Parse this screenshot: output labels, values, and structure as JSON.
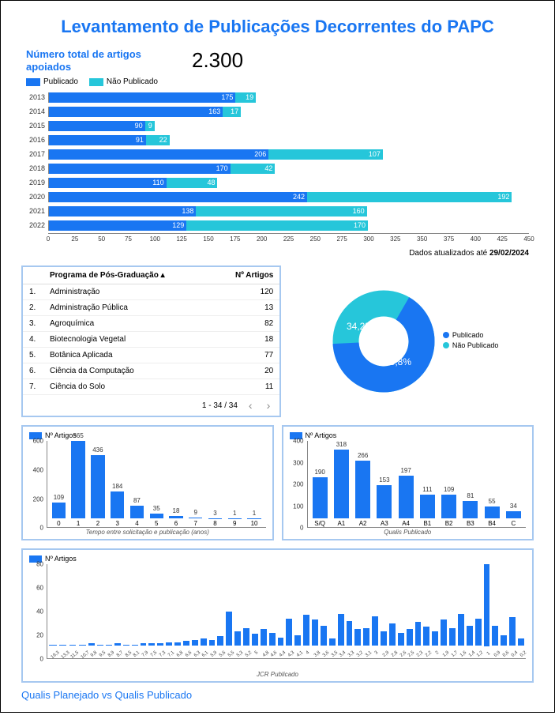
{
  "colors": {
    "primary": "#1976f2",
    "secondary": "#26c6da",
    "border": "#a6c8f0",
    "axis": "#888888",
    "text": "#333333",
    "white": "#ffffff"
  },
  "title": "Levantamento de Publicações Decorrentes do PAPC",
  "kpi": {
    "label": "Número total de artigos apoiados",
    "value": "2.300"
  },
  "stacked_legend": [
    {
      "label": "Publicado",
      "color": "#1976f2"
    },
    {
      "label": "Não Publicado",
      "color": "#26c6da"
    }
  ],
  "stacked_chart": {
    "xmax": 450,
    "xtick_step": 25,
    "rows": [
      {
        "year": "2013",
        "pub": 175,
        "npub": 19
      },
      {
        "year": "2014",
        "pub": 163,
        "npub": 17
      },
      {
        "year": "2015",
        "pub": 90,
        "npub": 9
      },
      {
        "year": "2016",
        "pub": 91,
        "npub": 22
      },
      {
        "year": "2017",
        "pub": 206,
        "npub": 107
      },
      {
        "year": "2018",
        "pub": 170,
        "npub": 42
      },
      {
        "year": "2019",
        "pub": 110,
        "npub": 48
      },
      {
        "year": "2020",
        "pub": 242,
        "npub": 192
      },
      {
        "year": "2021",
        "pub": 138,
        "npub": 160
      },
      {
        "year": "2022",
        "pub": 129,
        "npub": 170
      }
    ]
  },
  "updated": {
    "prefix": "Dados atualizados até ",
    "date": "29/02/2024"
  },
  "table": {
    "col_program": "Programa de Pós-Graduação",
    "sort_indicator": "▴",
    "col_count": "Nº Artigos",
    "rows": [
      {
        "n": "1.",
        "name": "Administração",
        "val": "120"
      },
      {
        "n": "2.",
        "name": "Administração Pública",
        "val": "13"
      },
      {
        "n": "3.",
        "name": "Agroquímica",
        "val": "82"
      },
      {
        "n": "4.",
        "name": "Biotecnologia Vegetal",
        "val": "18"
      },
      {
        "n": "5.",
        "name": "Botânica Aplicada",
        "val": "77"
      },
      {
        "n": "6.",
        "name": "Ciência da Computação",
        "val": "20"
      },
      {
        "n": "7.",
        "name": "Ciência do Solo",
        "val": "11"
      }
    ],
    "pager": "1 - 34 / 34"
  },
  "donut": {
    "pub_pct": 65.8,
    "pub_label": "65,8%",
    "npub_pct": 34.2,
    "npub_label": "34,2%",
    "legend": [
      {
        "label": "Publicado",
        "color": "#1976f2"
      },
      {
        "label": "Não Publicado",
        "color": "#26c6da"
      }
    ]
  },
  "tempo_chart": {
    "legend": "Nº Artigos",
    "ymax": 600,
    "ytick_step": 200,
    "axis_title": "Tempo entre solicitação e publicação (anos)",
    "bars": [
      {
        "x": "0",
        "v": 109
      },
      {
        "x": "1",
        "v": 565
      },
      {
        "x": "2",
        "v": 436
      },
      {
        "x": "3",
        "v": 184
      },
      {
        "x": "4",
        "v": 87
      },
      {
        "x": "5",
        "v": 35
      },
      {
        "x": "6",
        "v": 18
      },
      {
        "x": "7",
        "v": 9
      },
      {
        "x": "8",
        "v": 3
      },
      {
        "x": "9",
        "v": 1
      },
      {
        "x": "10",
        "v": 1
      }
    ]
  },
  "qualis_chart": {
    "legend": "Nº Artigos",
    "ymax": 400,
    "ytick_step": 100,
    "axis_title": "Qualis Publicado",
    "bars": [
      {
        "x": "S/Q",
        "v": 190
      },
      {
        "x": "A1",
        "v": 318
      },
      {
        "x": "A2",
        "v": 266
      },
      {
        "x": "A3",
        "v": 153
      },
      {
        "x": "A4",
        "v": 197
      },
      {
        "x": "B1",
        "v": 111
      },
      {
        "x": "B2",
        "v": 109
      },
      {
        "x": "B3",
        "v": 81
      },
      {
        "x": "B4",
        "v": 55
      },
      {
        "x": "C",
        "v": 34
      }
    ]
  },
  "jcr_chart": {
    "legend": "Nº Artigos",
    "ymax": 80,
    "ytick_step": 20,
    "axis_title": "JCR Publicado",
    "bars": [
      {
        "x": "19,3",
        "v": 1
      },
      {
        "x": "13,3",
        "v": 1
      },
      {
        "x": "11,5",
        "v": 1
      },
      {
        "x": "10,7",
        "v": 1
      },
      {
        "x": "9,8",
        "v": 2
      },
      {
        "x": "9,5",
        "v": 1
      },
      {
        "x": "8,9",
        "v": 1
      },
      {
        "x": "8,7",
        "v": 2
      },
      {
        "x": "8,5",
        "v": 1
      },
      {
        "x": "8,1",
        "v": 1
      },
      {
        "x": "7,9",
        "v": 2
      },
      {
        "x": "7,5",
        "v": 2
      },
      {
        "x": "7,3",
        "v": 2
      },
      {
        "x": "7,1",
        "v": 3
      },
      {
        "x": "6,8",
        "v": 3
      },
      {
        "x": "6,6",
        "v": 4
      },
      {
        "x": "6,3",
        "v": 5
      },
      {
        "x": "6,1",
        "v": 6
      },
      {
        "x": "5,9",
        "v": 5
      },
      {
        "x": "5,6",
        "v": 8
      },
      {
        "x": "5,5",
        "v": 29
      },
      {
        "x": "5,3",
        "v": 12
      },
      {
        "x": "5,2",
        "v": 15
      },
      {
        "x": "5",
        "v": 10
      },
      {
        "x": "4,8",
        "v": 14
      },
      {
        "x": "4,6",
        "v": 11
      },
      {
        "x": "4,4",
        "v": 7
      },
      {
        "x": "4,3",
        "v": 23
      },
      {
        "x": "4,1",
        "v": 9
      },
      {
        "x": "4",
        "v": 26
      },
      {
        "x": "3,8",
        "v": 22
      },
      {
        "x": "3,6",
        "v": 17
      },
      {
        "x": "3,5",
        "v": 6
      },
      {
        "x": "3,4",
        "v": 27
      },
      {
        "x": "3,3",
        "v": 21
      },
      {
        "x": "3,2",
        "v": 14
      },
      {
        "x": "3,1",
        "v": 15
      },
      {
        "x": "3",
        "v": 25
      },
      {
        "x": "2,9",
        "v": 12
      },
      {
        "x": "2,8",
        "v": 19
      },
      {
        "x": "2,6",
        "v": 11
      },
      {
        "x": "2,5",
        "v": 14
      },
      {
        "x": "2,3",
        "v": 20
      },
      {
        "x": "2,2",
        "v": 16
      },
      {
        "x": "2",
        "v": 12
      },
      {
        "x": "1,9",
        "v": 22
      },
      {
        "x": "1,7",
        "v": 15
      },
      {
        "x": "1,6",
        "v": 27
      },
      {
        "x": "1,4",
        "v": 17
      },
      {
        "x": "1,2",
        "v": 23
      },
      {
        "x": "1",
        "v": 74
      },
      {
        "x": "0,9",
        "v": 17
      },
      {
        "x": "0,6",
        "v": 9
      },
      {
        "x": "0,4",
        "v": 24
      },
      {
        "x": "0,2",
        "v": 6
      }
    ]
  },
  "footer_link": "Qualis Planejado vs Qualis Publicado"
}
